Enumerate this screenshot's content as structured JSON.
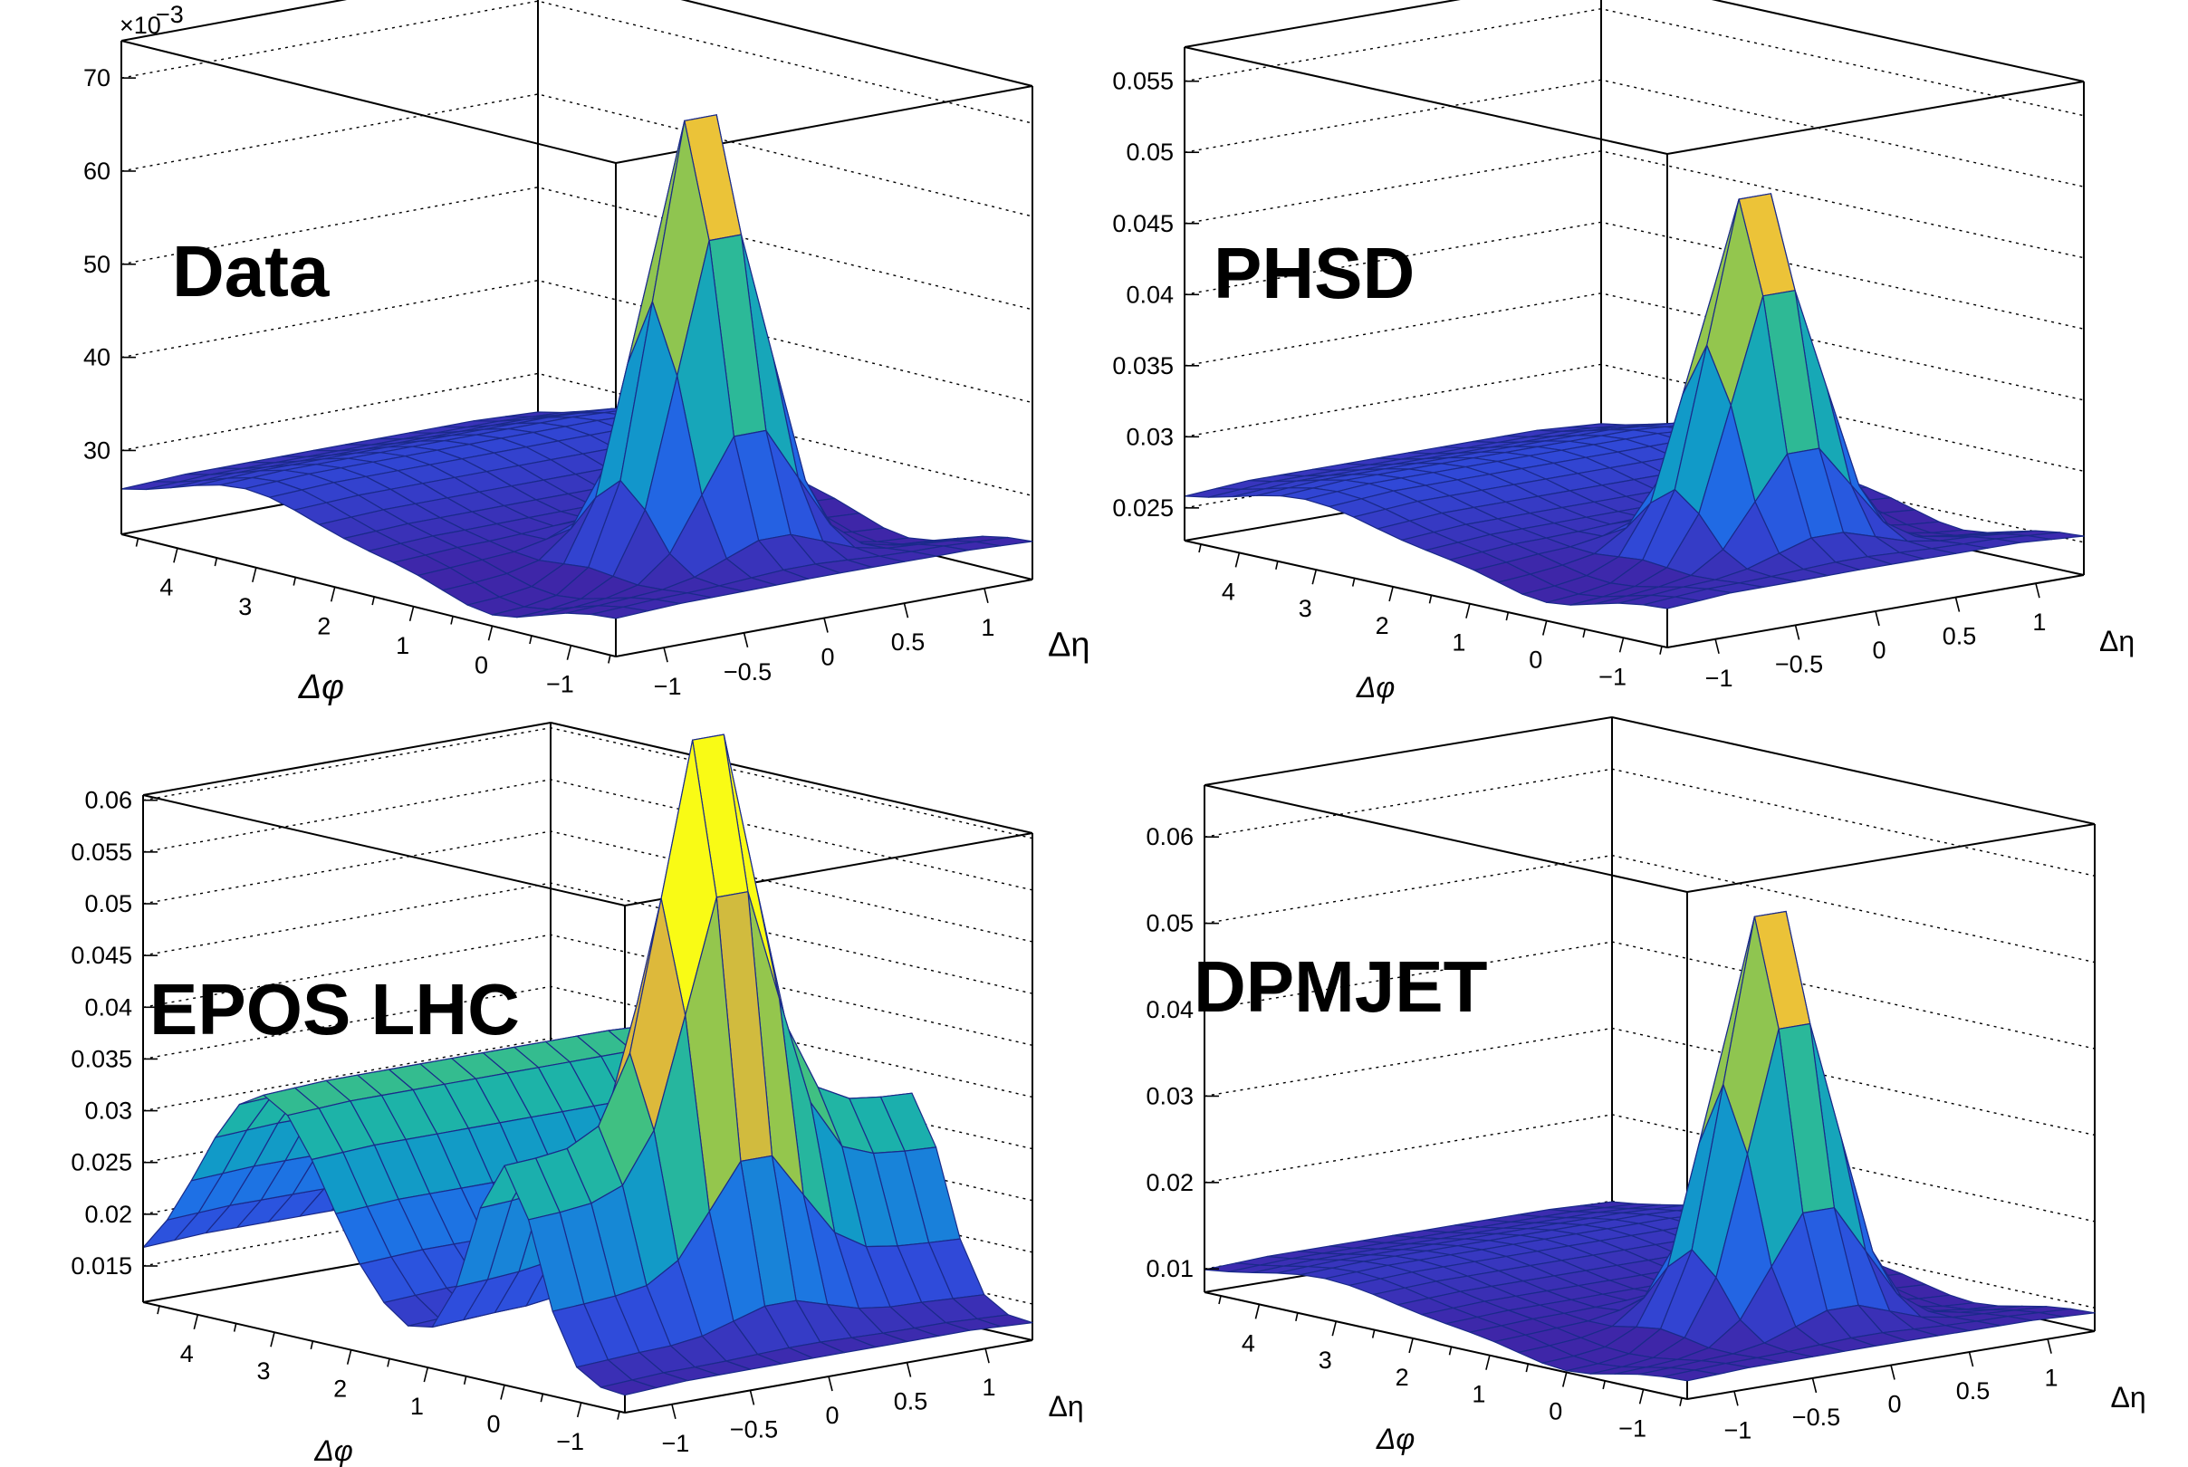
{
  "colors": {
    "colormap": [
      "#3e26a8",
      "#2f4bdb",
      "#1e6fe6",
      "#1199c9",
      "#1cb3a9",
      "#44c17e",
      "#9bc649",
      "#e2b83a",
      "#fcd735",
      "#f9fb15"
    ],
    "grid": "#000000",
    "frame": "#000000",
    "mesh": "#1a2a8a"
  },
  "chart_data": [
    {
      "type": "surface",
      "title": "Data",
      "xlabel": "Δφ",
      "ylabel": "Δη",
      "phi_ticks": [
        "4",
        "3",
        "2",
        "1",
        "0",
        "−1"
      ],
      "eta_ticks": [
        "−1",
        "−0.5",
        "0",
        "0.5",
        "1"
      ],
      "z_ticks": [
        "30",
        "40",
        "50",
        "60",
        "70"
      ],
      "z_multiplier_label": "×10",
      "z_multiplier_exp": "−3",
      "zlim": [
        0.021,
        0.074
      ],
      "peak": 0.0745,
      "base": 0.0255,
      "near_side_ridge": 0.0,
      "away_side_ridge": 0.004,
      "near_side_dip": 0.003
    },
    {
      "type": "surface",
      "title": "PHSD",
      "xlabel": "Δφ",
      "ylabel": "Δη",
      "phi_ticks": [
        "4",
        "3",
        "2",
        "1",
        "0",
        "−1"
      ],
      "eta_ticks": [
        "−1",
        "−0.5",
        "0",
        "0.5",
        "1"
      ],
      "z_ticks": [
        "0.025",
        "0.03",
        "0.035",
        "0.04",
        "0.045",
        "0.05",
        "0.055"
      ],
      "z_multiplier_label": "",
      "z_multiplier_exp": "",
      "zlim": [
        0.0227,
        0.0574
      ],
      "peak": 0.0516,
      "base": 0.0258,
      "near_side_ridge": 0.0,
      "away_side_ridge": 0.002,
      "near_side_dip": 0.0015
    },
    {
      "type": "surface",
      "title": "EPOS LHC",
      "xlabel": "Δφ",
      "ylabel": "Δη",
      "phi_ticks": [
        "4",
        "3",
        "2",
        "1",
        "0",
        "−1"
      ],
      "eta_ticks": [
        "−1",
        "−0.5",
        "0",
        "0.5",
        "1"
      ],
      "z_ticks": [
        "0.015",
        "0.02",
        "0.025",
        "0.03",
        "0.035",
        "0.04",
        "0.045",
        "0.05",
        "0.055",
        "0.06"
      ],
      "z_multiplier_label": "",
      "z_multiplier_exp": "",
      "zlim": [
        0.0115,
        0.0605
      ],
      "peak": 0.0535,
      "base": 0.0135,
      "near_side_ridge": 0.0195,
      "away_side_ridge": 0.021,
      "near_side_dip": 0.0
    },
    {
      "type": "surface",
      "title": "DPMJET",
      "xlabel": "Δφ",
      "ylabel": "Δη",
      "phi_ticks": [
        "4",
        "3",
        "2",
        "1",
        "0",
        "−1"
      ],
      "eta_ticks": [
        "−1",
        "−0.5",
        "0",
        "0.5",
        "1"
      ],
      "z_ticks": [
        "0.01",
        "0.02",
        "0.03",
        "0.04",
        "0.05",
        "0.06"
      ],
      "z_multiplier_label": "",
      "z_multiplier_exp": "",
      "zlim": [
        0.0073,
        0.066
      ],
      "peak": 0.0595,
      "base": 0.0098,
      "near_side_ridge": 0.0,
      "away_side_ridge": 0.0025,
      "near_side_dip": 0.002
    }
  ]
}
